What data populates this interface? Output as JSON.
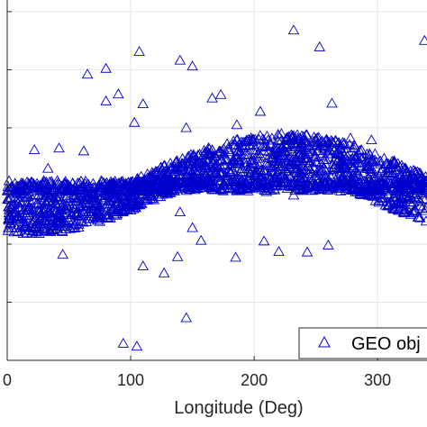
{
  "chart_data": {
    "type": "scatter",
    "xlabel": "Longitude (Deg)",
    "ylabel": "",
    "title": "",
    "xlim": [
      0,
      340
    ],
    "ylim": [
      -3,
      3.2
    ],
    "x_ticks": [
      0,
      100,
      200,
      300
    ],
    "x_tick_labels": [
      "0",
      "100",
      "200",
      "300"
    ],
    "y_ticks": [
      -3,
      -2,
      -1,
      0,
      1,
      2,
      3
    ],
    "grid": true,
    "legend_position": "bottom-right",
    "series": [
      {
        "name": "GEO obj",
        "marker": "triangle-up-open",
        "color": "#0000cc",
        "outliers": [
          [
            65,
            1.92
          ],
          [
            80,
            2.02
          ],
          [
            80,
            1.46
          ],
          [
            90,
            1.58
          ],
          [
            107,
            2.31
          ],
          [
            140,
            2.16
          ],
          [
            150,
            2.06
          ],
          [
            173,
            1.57
          ],
          [
            166,
            1.51
          ],
          [
            103,
            1.09
          ],
          [
            110,
            1.41
          ],
          [
            145,
            1.0
          ],
          [
            186,
            1.05
          ],
          [
            205,
            1.28
          ],
          [
            232,
            2.68
          ],
          [
            253,
            2.39
          ],
          [
            263,
            1.42
          ],
          [
            258,
            0.78
          ],
          [
            278,
            0.82
          ],
          [
            295,
            0.79
          ],
          [
            338,
            2.5
          ],
          [
            22,
            0.62
          ],
          [
            42,
            0.65
          ],
          [
            62,
            0.6
          ],
          [
            33,
            0.3
          ],
          [
            45,
            -1.18
          ],
          [
            85,
            -0.42
          ],
          [
            140,
            -0.45
          ],
          [
            150,
            -0.72
          ],
          [
            157,
            -0.94
          ],
          [
            110,
            -1.38
          ],
          [
            127,
            -1.5
          ],
          [
            138,
            -1.22
          ],
          [
            145,
            -2.27
          ],
          [
            94,
            -2.71
          ],
          [
            105,
            -2.76
          ],
          [
            185,
            -1.23
          ],
          [
            208,
            -0.95
          ],
          [
            220,
            -1.13
          ],
          [
            243,
            -1.14
          ],
          [
            260,
            -1.02
          ],
          [
            210,
            -0.1
          ],
          [
            232,
            -0.16
          ]
        ]
      }
    ],
    "legend": {
      "entries": [
        "GEO obj"
      ]
    }
  }
}
